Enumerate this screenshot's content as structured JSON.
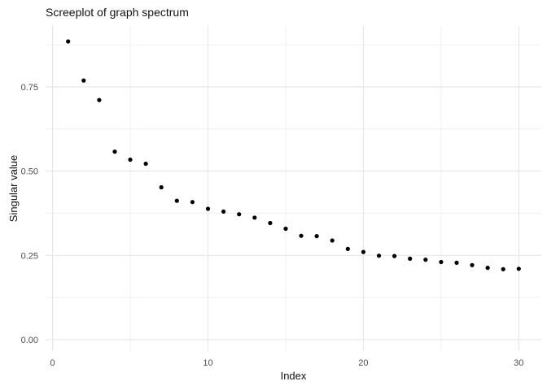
{
  "figure": {
    "title": "Screeplot of graph spectrum",
    "x_axis_title": "Index",
    "y_axis_title": "Singular value"
  },
  "chart_data": {
    "type": "scatter",
    "title": "Screeplot of graph spectrum",
    "xlabel": "Index",
    "ylabel": "Singular value",
    "x": [
      1,
      2,
      3,
      4,
      5,
      6,
      7,
      8,
      9,
      10,
      11,
      12,
      13,
      14,
      15,
      16,
      17,
      18,
      19,
      20,
      21,
      22,
      23,
      24,
      25,
      26,
      27,
      28,
      29,
      30
    ],
    "y": [
      0.885,
      0.769,
      0.711,
      0.558,
      0.534,
      0.522,
      0.452,
      0.412,
      0.408,
      0.388,
      0.38,
      0.372,
      0.362,
      0.346,
      0.329,
      0.308,
      0.307,
      0.294,
      0.269,
      0.26,
      0.249,
      0.248,
      0.24,
      0.237,
      0.23,
      0.228,
      0.221,
      0.213,
      0.209,
      0.21
    ],
    "xlim": [
      -0.45,
      31.45
    ],
    "ylim": [
      -0.034,
      0.932
    ],
    "x_major_ticks": [
      0,
      10,
      20,
      30
    ],
    "x_tick_labels": [
      "0",
      "10",
      "20",
      "30"
    ],
    "x_minor_ticks": [
      5,
      15,
      25
    ],
    "y_major_ticks": [
      0.0,
      0.25,
      0.5,
      0.75
    ],
    "y_tick_labels": [
      "0.00",
      "0.25",
      "0.50",
      "0.75"
    ],
    "y_minor_ticks": [
      0.125,
      0.375,
      0.625,
      0.875
    ],
    "grid": true,
    "legend": "none",
    "style": {
      "point_color": "#000000",
      "point_radius": 2.6,
      "grid_major_color": "#e5e5e5",
      "grid_minor_color": "#f0f0f0",
      "tick_label_color": "#4d4d4d",
      "title_color": "#111111",
      "axis_title_color": "#111111",
      "background": "#ffffff"
    }
  }
}
